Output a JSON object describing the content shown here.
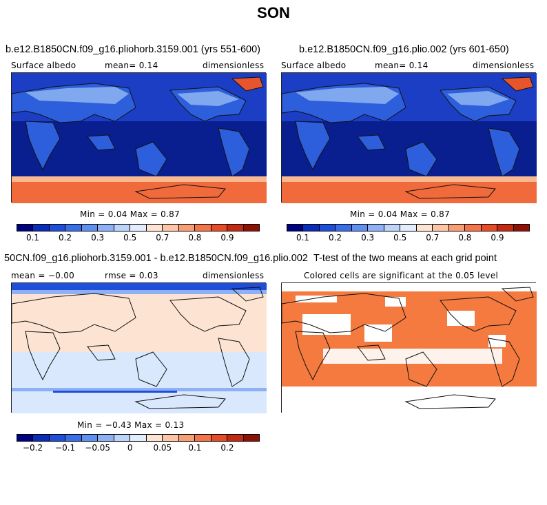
{
  "figure": {
    "title": "SON"
  },
  "panels": {
    "top_left": {
      "title": "b.e12.B1850CN.f09_g16.pliohorb.3159.001 (yrs 551-600)",
      "left_label": "Surface albedo",
      "center_label": "mean=   0.14",
      "right_label": "dimensionless",
      "minmax": "Min =   0.04 Max =   0.87"
    },
    "top_right": {
      "title": "b.e12.B1850CN.f09_g16.plio.002 (yrs 601-650)",
      "left_label": "Surface albedo",
      "center_label": "mean=   0.14",
      "right_label": "dimensionless",
      "minmax": "Min =   0.04 Max =   0.87"
    },
    "bottom_left": {
      "title": "50CN.f09_g16.pliohorb.3159.001 - b.e12.B1850CN.f09_g16.plio.002",
      "left_label": "mean =  −0.00",
      "center_label": "rmse =   0.03",
      "right_label": "dimensionless",
      "minmax": "Min =  −0.43 Max =   0.13"
    },
    "bottom_right": {
      "title": "T-test of the two means at each grid point",
      "subtitle": "Colored cells are significant at the 0.05 level"
    }
  },
  "colorbars": {
    "albedo": {
      "colors": [
        "#00037f",
        "#0a2cb8",
        "#1f4ed9",
        "#3a6ee6",
        "#5f8fef",
        "#8db1f4",
        "#bcd3fa",
        "#e1ecfd",
        "#fde4d2",
        "#fcc6a6",
        "#f89e75",
        "#f3734b",
        "#e54c27",
        "#c22a12",
        "#8f1105"
      ],
      "tick_labels": [
        "0.1",
        "0.2",
        "0.3",
        "0.5",
        "0.7",
        "0.8",
        "0.9"
      ]
    },
    "difference": {
      "colors": [
        "#00037f",
        "#0a2cb8",
        "#1f4ed9",
        "#3a6ee6",
        "#5f8fef",
        "#8db1f4",
        "#bcd3fa",
        "#e1ecfd",
        "#fde4d2",
        "#fcc6a6",
        "#f89e75",
        "#f3734b",
        "#e54c27",
        "#c22a12",
        "#8f1105"
      ],
      "tick_labels": [
        "−0.2",
        "−0.1",
        "−0.05",
        "0",
        "0.05",
        "0.1",
        "0.2"
      ]
    }
  },
  "map_colors": {
    "ocean_dark": "#0a1f8f",
    "ocean_mid": "#1b3ec4",
    "land_albedo": "#2d5fdc",
    "land_bright": "#7fa8ee",
    "sea_ice": "#f06a3c",
    "sea_ice_edge": "#f8b890",
    "greenland": "#e8542c",
    "diff_neutral": "#d9e8fc",
    "diff_warm": "#fde4d2",
    "diff_cold": "#1f4ed9",
    "significant": "#f47a3f",
    "coast": "#111111"
  }
}
